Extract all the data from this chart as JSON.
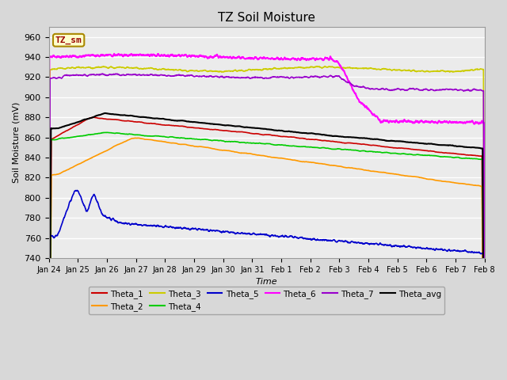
{
  "title": "TZ Soil Moisture",
  "ylabel": "Soil Moisture (mV)",
  "xlabel": "Time",
  "n_days": 15.5,
  "ylim": [
    740,
    970
  ],
  "yticks": [
    740,
    760,
    780,
    800,
    820,
    840,
    860,
    880,
    900,
    920,
    940,
    960
  ],
  "date_labels": [
    "Jan 24",
    "Jan 25",
    "Jan 26",
    "Jan 27",
    "Jan 28",
    "Jan 29",
    "Jan 30",
    "Jan 31",
    "Feb 1",
    "Feb 2",
    "Feb 3",
    "Feb 4",
    "Feb 5",
    "Feb 6",
    "Feb 7",
    "Feb 8"
  ],
  "background_color": "#d8d8d8",
  "plot_bg_color": "#ebebeb",
  "legend_box_color": "#ffffcc",
  "legend_box_text": "TZ_sm",
  "legend_box_text_color": "#990000",
  "series_colors": {
    "Theta_1": "#cc0000",
    "Theta_2": "#ff9900",
    "Theta_3": "#cccc00",
    "Theta_4": "#00cc00",
    "Theta_5": "#0000cc",
    "Theta_6": "#ff00ff",
    "Theta_7": "#9900cc",
    "Theta_avg": "#000000"
  }
}
